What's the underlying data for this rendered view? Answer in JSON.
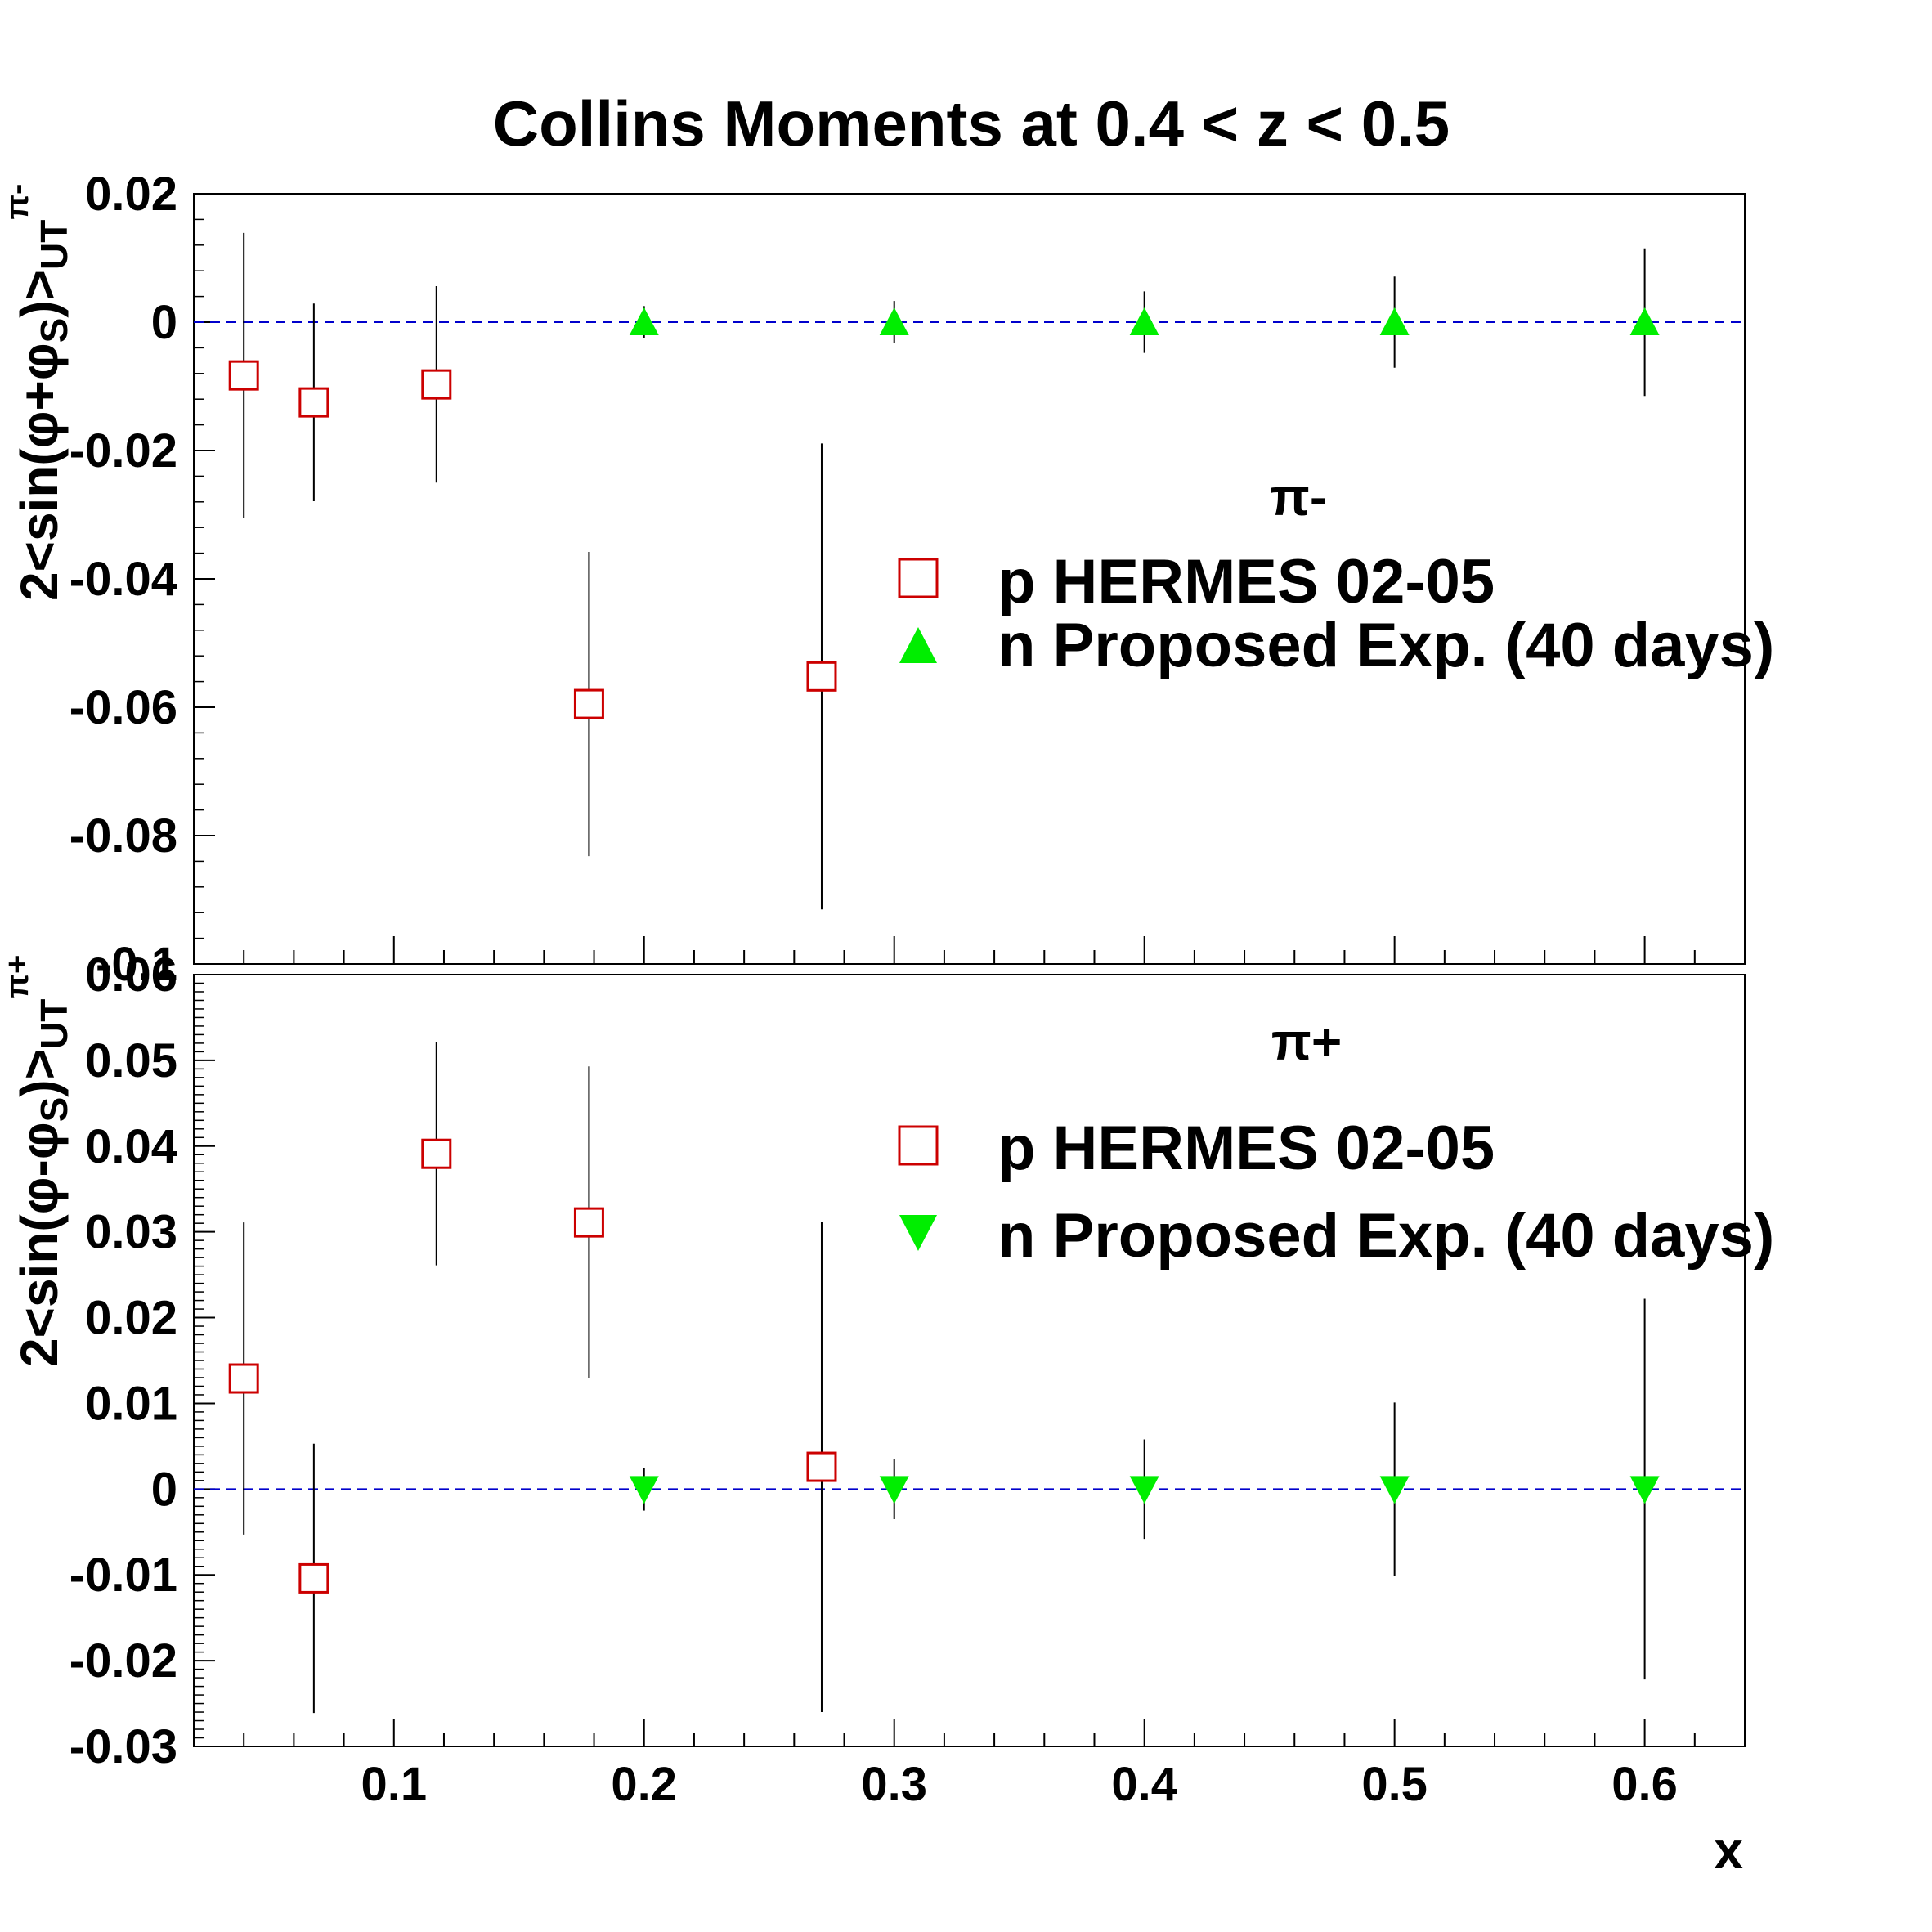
{
  "title": "Collins Moments at 0.4 < z < 0.5",
  "xlabel": "x",
  "x_ticks": [
    "0.1",
    "0.2",
    "0.3",
    "0.4",
    "0.5",
    "0.6"
  ],
  "colors": {
    "hermes": "#cc0000",
    "proposed": "#00ee00",
    "zero_line": "#0000cc",
    "axis": "#000000"
  },
  "chart_data": [
    {
      "type": "scatter",
      "panel": "top",
      "pion_label": "π-",
      "ylabel": "2<sin(φ+φS)>UT π-",
      "y_ticks": [
        "0.02",
        "0",
        "-0.02",
        "-0.04",
        "-0.06",
        "-0.08",
        "-0.1"
      ],
      "xlim": [
        0.02,
        0.64
      ],
      "ylim": [
        -0.1,
        0.02
      ],
      "grid": false,
      "legend_position": "middle-right",
      "zero_line": true,
      "series": [
        {
          "name": "p HERMES 02-05",
          "marker": "open-square",
          "x": [
            0.04,
            0.068,
            0.117,
            0.178,
            0.271
          ],
          "y": [
            -0.0083,
            -0.0125,
            -0.0097,
            -0.0595,
            -0.0552
          ],
          "err": [
            0.0222,
            0.0154,
            0.0153,
            0.0237,
            0.0363
          ]
        },
        {
          "name": "n Proposed Exp. (40 days)",
          "marker": "triangle-up",
          "x": [
            0.2,
            0.3,
            0.4,
            0.5,
            0.6
          ],
          "y": [
            0,
            0,
            0,
            0,
            0
          ],
          "err": [
            0.0025,
            0.0033,
            0.0048,
            0.0071,
            0.0115
          ]
        }
      ]
    },
    {
      "type": "scatter",
      "panel": "bottom",
      "pion_label": "π+",
      "ylabel": "2<sin(φ-φS)>UT π+",
      "y_ticks": [
        "0.06",
        "0.05",
        "0.04",
        "0.03",
        "0.02",
        "0.01",
        "0",
        "-0.01",
        "-0.02",
        "-0.03"
      ],
      "xlim": [
        0.02,
        0.64
      ],
      "ylim": [
        -0.03,
        0.06
      ],
      "grid": false,
      "legend_position": "middle-right",
      "zero_line": true,
      "series": [
        {
          "name": "p HERMES 02-05",
          "marker": "open-square",
          "x": [
            0.04,
            0.068,
            0.117,
            0.178,
            0.271
          ],
          "y": [
            0.0129,
            -0.0104,
            0.0391,
            0.0311,
            0.0026
          ],
          "err": [
            0.0182,
            0.0157,
            0.013,
            0.0182,
            0.0286
          ]
        },
        {
          "name": "n Proposed Exp. (40 days)",
          "marker": "triangle-down",
          "x": [
            0.2,
            0.3,
            0.4,
            0.5,
            0.6
          ],
          "y": [
            0,
            0,
            0,
            0,
            0
          ],
          "err": [
            0.0025,
            0.0035,
            0.0058,
            0.0101,
            0.0222
          ]
        }
      ]
    }
  ]
}
